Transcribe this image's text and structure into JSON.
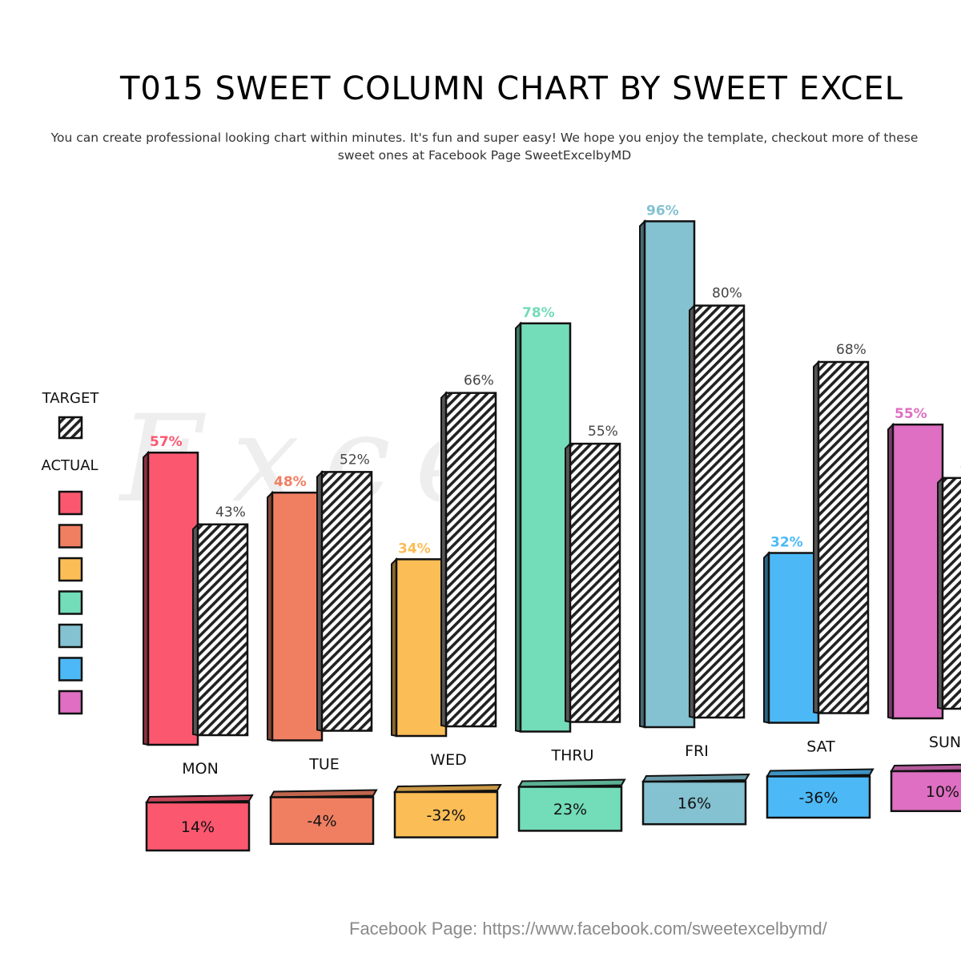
{
  "title": "T015 SWEET COLUMN CHART BY SWEET EXCEL",
  "subtitle": "You can create professional looking chart within minutes. It's fun and super easy! We hope you enjoy the template, checkout more of these sweet ones at Facebook Page SweetExcelbyMD",
  "footer": "Facebook Page: https://www.facebook.com/sweetexcelbymd/",
  "watermark": "Excel",
  "chart_data": {
    "type": "bar",
    "categories": [
      "MON",
      "TUE",
      "WED",
      "THRU",
      "FRI",
      "SAT",
      "SUN"
    ],
    "series": [
      {
        "name": "ACTUAL",
        "values": [
          57,
          48,
          34,
          78,
          96,
          32,
          55
        ]
      },
      {
        "name": "TARGET",
        "values": [
          43,
          52,
          66,
          55,
          80,
          68,
          45
        ]
      }
    ],
    "variance": [
      14,
      -4,
      -32,
      23,
      16,
      -36,
      10
    ],
    "ylim": [
      0,
      100
    ],
    "unit": "%",
    "legend": {
      "target_label": "TARGET",
      "actual_label": "ACTUAL",
      "placement": "left"
    },
    "colors": [
      "#fb5870",
      "#f07f62",
      "#fbbd56",
      "#73dcb8",
      "#84c1d1",
      "#4cb9f6",
      "#de6fc2"
    ],
    "target_pattern": "diagonal-hatch"
  }
}
